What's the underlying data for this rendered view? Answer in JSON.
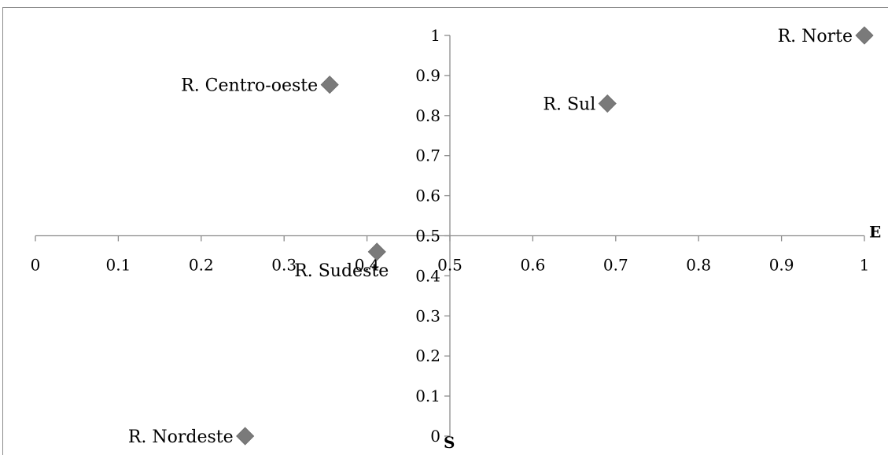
{
  "chart_data": {
    "type": "scatter",
    "title": "",
    "xlabel": "E",
    "ylabel": "S",
    "xlim": [
      0,
      1
    ],
    "ylim": [
      0,
      1
    ],
    "x_ticks": [
      0,
      0.1,
      0.2,
      0.3,
      0.4,
      0.5,
      0.6,
      0.7,
      0.8,
      0.9,
      1
    ],
    "y_ticks": [
      0,
      0.1,
      0.2,
      0.3,
      0.4,
      0.5,
      0.6,
      0.7,
      0.8,
      0.9,
      1
    ],
    "x_tick_labels": [
      "0",
      "0.1",
      "0.2",
      "0.3",
      "0.4",
      "0.5",
      "0.6",
      "0.7",
      "0.8",
      "0.9",
      "1"
    ],
    "y_tick_labels": [
      "0",
      "0.1",
      "0.2",
      "0.3",
      "0.4",
      "0.5",
      "0.6",
      "0.7",
      "0.8",
      "0.9",
      "1"
    ],
    "axis_crossing": {
      "x": 0.5,
      "y": 0.5
    },
    "grid": false,
    "marker": "diamond",
    "marker_color": "#7a7a7a",
    "points": [
      {
        "label": "R. Norte",
        "x": 1.0,
        "y": 1.0,
        "label_side": "left"
      },
      {
        "label": "R. Centro-oeste",
        "x": 0.355,
        "y": 0.877,
        "label_side": "left"
      },
      {
        "label": "R. Sul",
        "x": 0.69,
        "y": 0.83,
        "label_side": "left"
      },
      {
        "label": "R. Sudeste",
        "x": 0.412,
        "y": 0.46,
        "label_side": "below-left"
      },
      {
        "label": "R. Nordeste",
        "x": 0.253,
        "y": 0.0,
        "label_side": "left"
      }
    ]
  }
}
